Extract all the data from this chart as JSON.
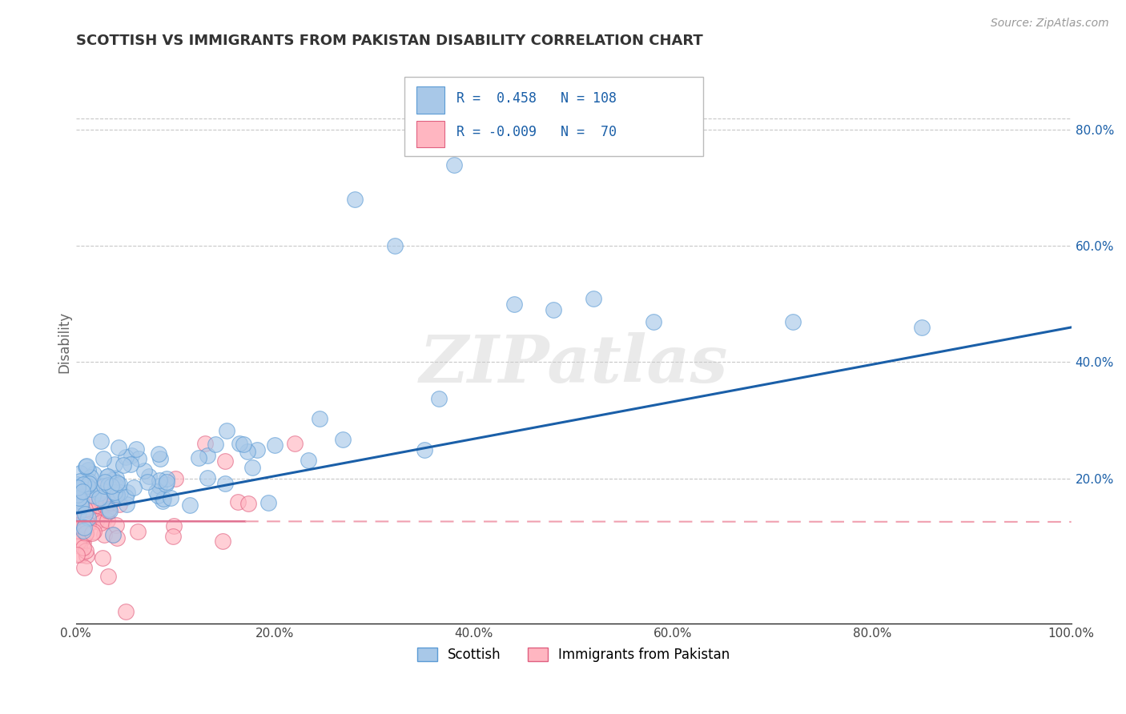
{
  "title": "SCOTTISH VS IMMIGRANTS FROM PAKISTAN DISABILITY CORRELATION CHART",
  "source": "Source: ZipAtlas.com",
  "xlabel": "",
  "ylabel": "Disability",
  "xlim": [
    0,
    1.0
  ],
  "ylim": [
    -0.05,
    0.92
  ],
  "x_ticks": [
    0.0,
    0.2,
    0.4,
    0.6,
    0.8,
    1.0
  ],
  "x_tick_labels": [
    "0.0%",
    "20.0%",
    "40.0%",
    "60.0%",
    "80.0%",
    "100.0%"
  ],
  "y_ticks_right": [
    0.2,
    0.4,
    0.6,
    0.8
  ],
  "y_tick_labels_right": [
    "20.0%",
    "40.0%",
    "60.0%",
    "80.0%"
  ],
  "scottish_color": "#a8c8e8",
  "scottish_edge": "#5b9bd5",
  "pakistan_color": "#ffb6c1",
  "pakistan_edge": "#e06080",
  "trend_blue": "#1a5fa8",
  "trend_pink": "#e07090",
  "trend_pink_dash": "#f0a0b0",
  "R_scottish": 0.458,
  "N_scottish": 108,
  "R_pakistan": -0.009,
  "N_pakistan": 70,
  "legend_label_scottish": "Scottish",
  "legend_label_pakistan": "Immigrants from Pakistan",
  "watermark": "ZIPatlas",
  "background_color": "#ffffff",
  "grid_color": "#c8c8c8"
}
